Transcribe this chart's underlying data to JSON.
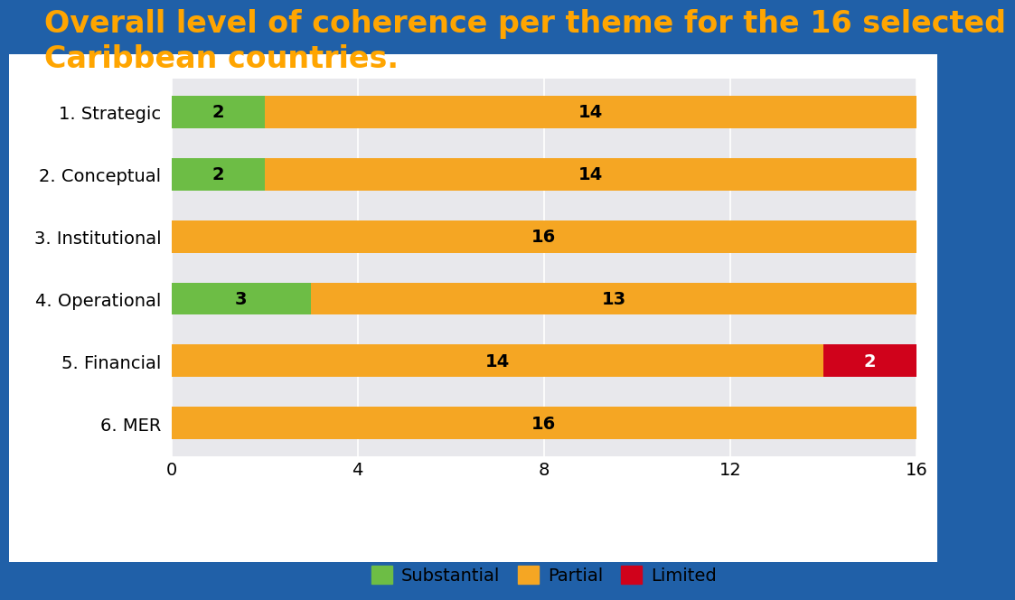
{
  "title_line1": "Overall level of coherence per theme for the 16 selected",
  "title_line2": "Caribbean countries.",
  "title_color": "#FFA500",
  "title_fontsize": 24,
  "categories": [
    "1. Strategic",
    "2. Conceptual",
    "3. Institutional",
    "4. Operational",
    "5. Financial",
    "6. MER"
  ],
  "substantial": [
    2,
    2,
    0,
    3,
    0,
    0
  ],
  "partial": [
    14,
    14,
    16,
    13,
    14,
    16
  ],
  "limited": [
    0,
    0,
    0,
    0,
    2,
    0
  ],
  "substantial_color": "#6DBD45",
  "partial_color": "#F5A623",
  "limited_color": "#D0021B",
  "bar_height": 0.52,
  "xlim": [
    0,
    16
  ],
  "xticks": [
    0,
    4,
    8,
    12,
    16
  ],
  "outer_background": "#2060A8",
  "chart_bg_color": "#E8E8EC",
  "inner_grid_color": "#FFFFFF",
  "label_fontsize": 14,
  "value_fontsize": 14,
  "legend_fontsize": 14,
  "white_card": [
    0.075,
    0.11,
    0.915,
    0.72
  ]
}
